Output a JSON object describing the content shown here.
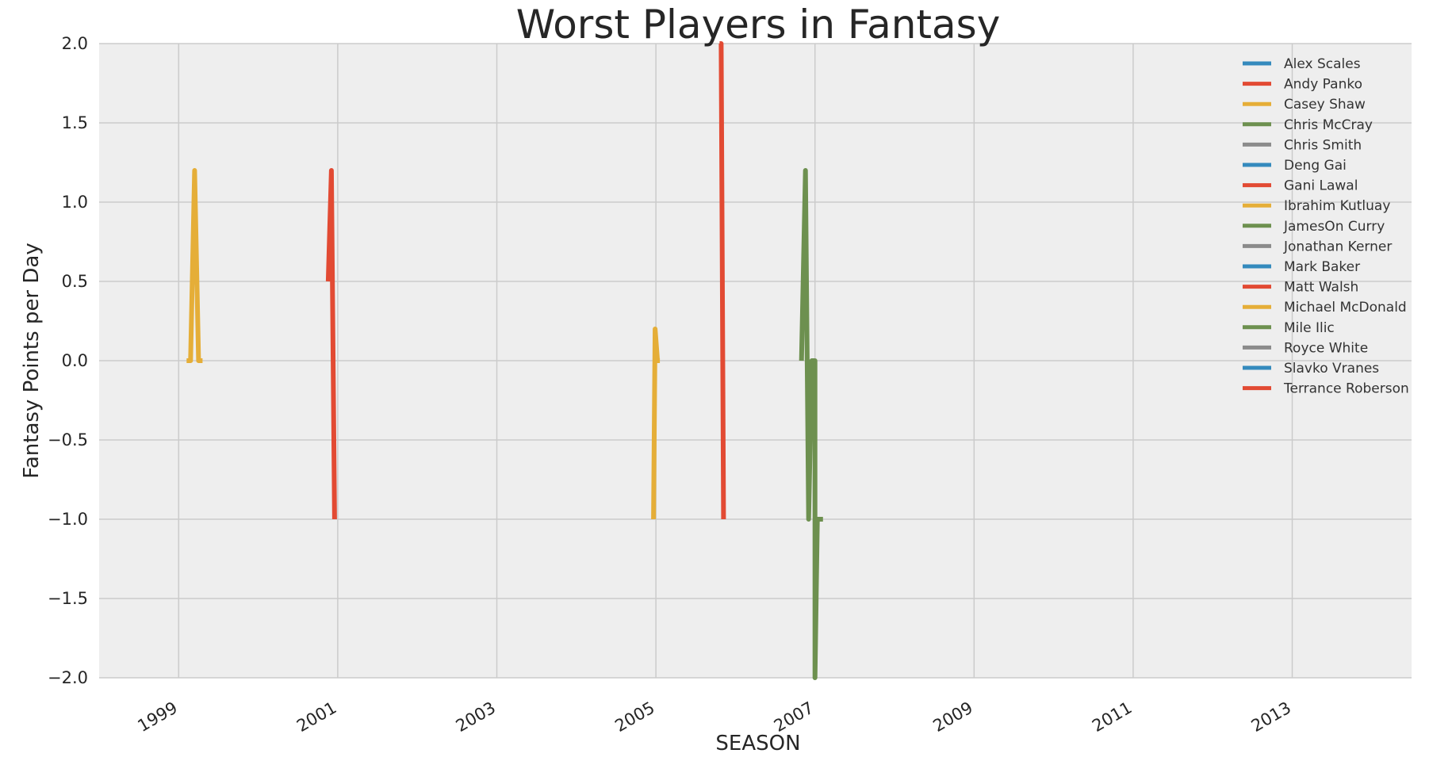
{
  "chart_data": {
    "type": "line",
    "title": "Worst Players in Fantasy",
    "xlabel": "SEASON",
    "ylabel": "Fantasy Points per Day",
    "xlim": [
      1998,
      2014.5
    ],
    "ylim": [
      -2.0,
      2.0
    ],
    "x_ticks": [
      1999,
      2001,
      2003,
      2005,
      2007,
      2009,
      2011,
      2013
    ],
    "y_ticks": [
      -2.0,
      -1.5,
      -1.0,
      -0.5,
      0.0,
      0.5,
      1.0,
      1.5,
      2.0
    ],
    "y_tick_labels": [
      "−2.0",
      "−1.5",
      "−1.0",
      "−0.5",
      "0.0",
      "0.5",
      "1.0",
      "1.5",
      "2.0"
    ],
    "grid": true,
    "legend_position": "top-right",
    "colors": {
      "background": "#eeeeee",
      "grid": "#cbcbcb",
      "blue": "#348ABD",
      "red": "#E24A33",
      "yellow": "#E5AE38",
      "green": "#6D904F",
      "gray": "#8B8B8B"
    },
    "series": [
      {
        "name": "Alex Scales",
        "color": "#348ABD",
        "points": []
      },
      {
        "name": "Andy Panko",
        "color": "#E24A33",
        "points": []
      },
      {
        "name": "Casey Shaw",
        "color": "#E5AE38",
        "points": [
          [
            1999.1,
            0.0
          ],
          [
            1999.15,
            0.0
          ],
          [
            1999.2,
            1.2
          ],
          [
            1999.25,
            0.0
          ],
          [
            1999.3,
            0.0
          ]
        ]
      },
      {
        "name": "Chris McCray",
        "color": "#6D904F",
        "points": []
      },
      {
        "name": "Chris Smith",
        "color": "#8B8B8B",
        "points": []
      },
      {
        "name": "Deng Gai",
        "color": "#348ABD",
        "points": []
      },
      {
        "name": "Gani Lawal",
        "color": "#E24A33",
        "points": []
      },
      {
        "name": "Ibrahim Kutluay",
        "color": "#E5AE38",
        "points": []
      },
      {
        "name": "JamesOn Curry",
        "color": "#6D904F",
        "points": []
      },
      {
        "name": "Jonathan Kerner",
        "color": "#8B8B8B",
        "points": []
      },
      {
        "name": "Mark Baker",
        "color": "#348ABD",
        "points": []
      },
      {
        "name": "Matt Walsh",
        "color": "#E24A33",
        "points": [
          [
            2000.88,
            0.5
          ],
          [
            2000.92,
            1.2
          ],
          [
            2000.96,
            -1.0
          ]
        ]
      },
      {
        "name": "Michael McDonald",
        "color": "#E5AE38",
        "points": [
          [
            2004.97,
            -1.0
          ],
          [
            2004.99,
            0.2
          ],
          [
            2005.02,
            0.0
          ],
          [
            2005.05,
            0.0
          ]
        ]
      },
      {
        "name": "Mile Ilic",
        "color": "#6D904F",
        "points": [
          [
            2006.83,
            0.0
          ],
          [
            2006.88,
            1.2
          ],
          [
            2006.92,
            -1.0
          ],
          [
            2006.96,
            0.0
          ],
          [
            2007.0,
            0.0
          ],
          [
            2007.0,
            -2.0
          ],
          [
            2007.03,
            -1.0
          ],
          [
            2007.1,
            -1.0
          ]
        ]
      },
      {
        "name": "Royce White",
        "color": "#8B8B8B",
        "points": []
      },
      {
        "name": "Slavko Vranes",
        "color": "#348ABD",
        "points": []
      },
      {
        "name": "Terrance Roberson",
        "color": "#E24A33",
        "points": [
          [
            2005.8,
            2.0
          ],
          [
            2005.82,
            2.0
          ],
          [
            2005.85,
            -1.0
          ]
        ]
      }
    ]
  }
}
